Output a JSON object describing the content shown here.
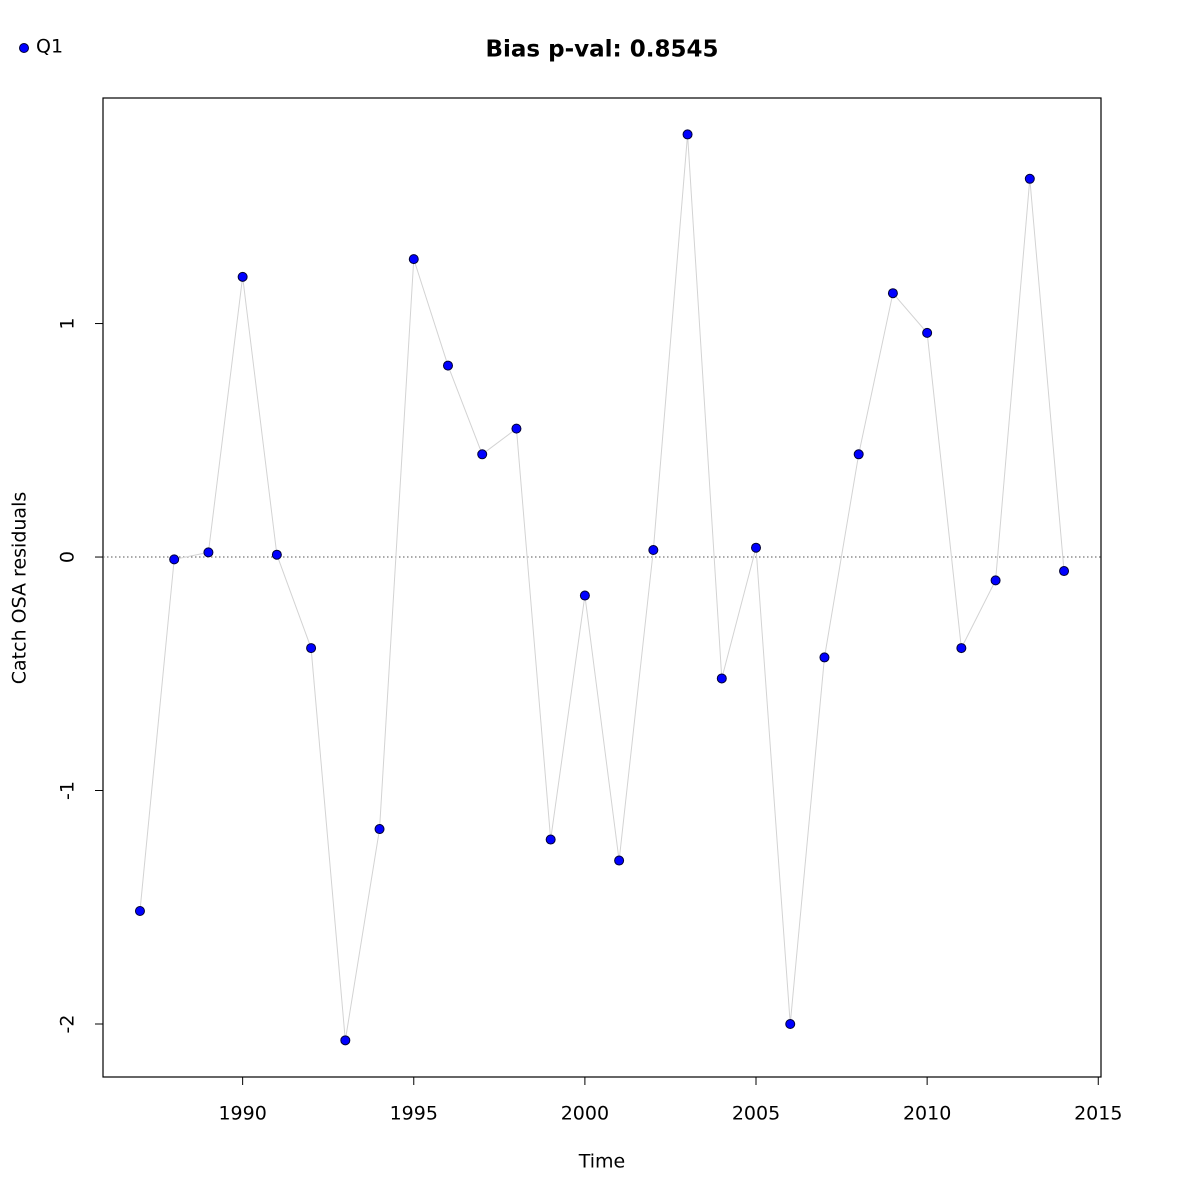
{
  "chart_data": {
    "type": "scatter",
    "title": "Bias p-val: 0.8545",
    "title_color": "#228b22",
    "x_label": "Time",
    "y_label": "Catch OSA residuals",
    "x": [
      1987,
      1988,
      1989,
      1990,
      1991,
      1992,
      1993,
      1994,
      1995,
      1996,
      1997,
      1998,
      1999,
      2000,
      2001,
      2002,
      2003,
      2004,
      2005,
      2006,
      2007,
      2008,
      2009,
      2010,
      2011,
      2012,
      2013,
      2014
    ],
    "series": [
      {
        "name": "Q1",
        "color": "#0000ff",
        "line_color": "#d3d3d3",
        "values": [
          -1.516,
          -0.01,
          0.02,
          1.2,
          0.01,
          -0.39,
          -2.07,
          -1.165,
          1.276,
          0.82,
          0.44,
          0.55,
          -1.21,
          -0.165,
          -1.3,
          0.03,
          1.81,
          -0.52,
          0.04,
          -2.0,
          -0.43,
          0.44,
          1.13,
          0.96,
          -0.39,
          -0.1,
          1.62,
          -0.06
        ]
      }
    ],
    "xlim": [
      1985.92,
      2015.08
    ],
    "xticks": [
      1990,
      1995,
      2000,
      2005,
      2010,
      2015
    ],
    "ylim": [
      -2.227,
      1.966
    ],
    "yticks": [
      -2,
      -1,
      0,
      1
    ],
    "reference_line": 0,
    "legend": "top-left"
  }
}
